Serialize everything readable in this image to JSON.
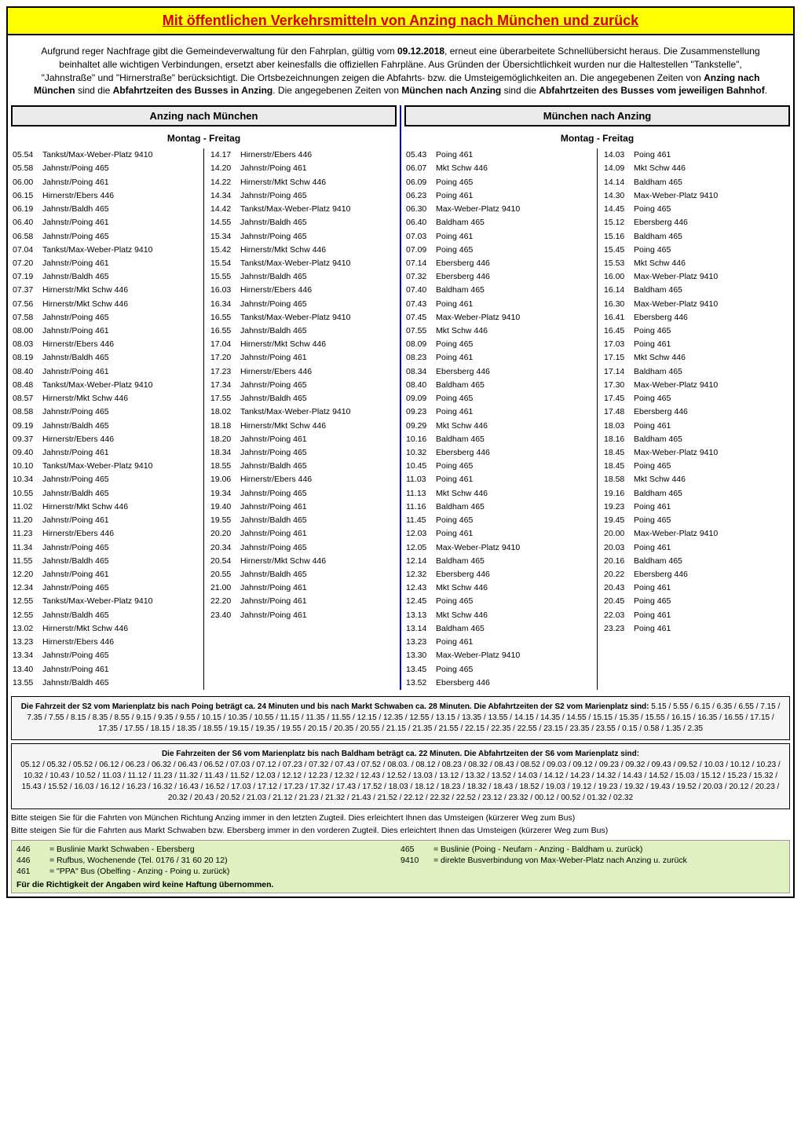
{
  "title": "Mit öffentlichen Verkehrsmitteln von Anzing nach München und zurück",
  "intro": {
    "p1a": "Aufgrund reger Nachfrage gibt die Gemeindeverwaltung für den Fahrplan, gültig vom ",
    "date": "09.12.2018",
    "p1b": ", erneut eine überarbeitete Schnellübersicht heraus. Die Zusammenstellung beinhaltet alle wichtigen Verbindungen, ersetzt aber keinesfalls die offiziellen Fahrpläne. Aus Gründen der Übersichtlichkeit wurden nur die Haltestellen \"Tankstelle\", \"Jahnstraße\"  und \"Hirnerstraße\" berücksichtigt. Die Ortsbezeichnungen zeigen die Abfahrts- bzw. die Umsteigemöglichkeiten an. Die angegebenen Zeiten von ",
    "b1": "Anzing nach München",
    "p1c": " sind die ",
    "b2": "Abfahrtzeiten des Busses in Anzing",
    "p1d": ". Die angegebenen Zeiten von ",
    "b3": "München nach Anzing",
    "p1e": " sind die ",
    "b4": "Abfahrtzeiten des Busses vom jeweiligen Bahnhof",
    "p1f": "."
  },
  "left": {
    "header": "Anzing nach München",
    "day": "Montag - Freitag",
    "col1": [
      [
        "05.54",
        "Tankst/Max-Weber-Platz 9410"
      ],
      [
        "05.58",
        "Jahnstr/Poing 465"
      ],
      [
        "06.00",
        "Jahnstr/Poing 461"
      ],
      [
        "06.15",
        "Hirnerstr/Ebers 446"
      ],
      [
        "06.19",
        "Jahnstr/Baldh 465"
      ],
      [
        "06.40",
        "Jahnstr/Poing 461"
      ],
      [
        "06.58",
        "Jahnstr/Poing 465"
      ],
      [
        "07.04",
        "Tankst/Max-Weber-Platz 9410"
      ],
      [
        "07.20",
        "Jahnstr/Poing 461"
      ],
      [
        "07.19",
        "Jahnstr/Baldh 465"
      ],
      [
        "07.37",
        "Hirnerstr/Mkt Schw 446"
      ],
      [
        "07.56",
        "Hirnerstr/Mkt Schw 446"
      ],
      [
        "07.58",
        "Jahnstr/Poing 465"
      ],
      [
        "08.00",
        "Jahnstr/Poing 461"
      ],
      [
        "08.03",
        "Hirnerstr/Ebers 446"
      ],
      [
        "08.19",
        "Jahnstr/Baldh 465"
      ],
      [
        "08.40",
        "Jahnstr/Poing 461"
      ],
      [
        "08.48",
        "Tankst/Max-Weber-Platz 9410"
      ],
      [
        "08.57",
        "Hirnerstr/Mkt Schw 446"
      ],
      [
        "08.58",
        "Jahnstr/Poing 465"
      ],
      [
        "09.19",
        "Jahnstr/Baldh 465"
      ],
      [
        "09.37",
        "Hirnerstr/Ebers 446"
      ],
      [
        "09.40",
        "Jahnstr/Poing 461"
      ],
      [
        "10.10",
        "Tankst/Max-Weber-Platz 9410"
      ],
      [
        "10.34",
        "Jahnstr/Poing 465"
      ],
      [
        "10.55",
        "Jahnstr/Baldh 465"
      ],
      [
        "11.02",
        "Hirnerstr/Mkt Schw 446"
      ],
      [
        "11.20",
        "Jahnstr/Poing 461"
      ],
      [
        "11.23",
        "Hirnerstr/Ebers 446"
      ],
      [
        "11.34",
        "Jahnstr/Poing 465"
      ],
      [
        "11.55",
        "Jahnstr/Baldh 465"
      ],
      [
        "12.20",
        "Jahnstr/Poing 461"
      ],
      [
        "12.34",
        "Jahnstr/Poing 465"
      ],
      [
        "12.55",
        "Tankst/Max-Weber-Platz 9410"
      ],
      [
        "12.55",
        "Jahnstr/Baldh 465"
      ],
      [
        "13.02",
        "Hirnerstr/Mkt Schw 446"
      ],
      [
        "13.23",
        "Hirnerstr/Ebers 446"
      ],
      [
        "13.34",
        "Jahnstr/Poing 465"
      ],
      [
        "13.40",
        "Jahnstr/Poing 461"
      ],
      [
        "13.55",
        "Jahnstr/Baldh 465"
      ]
    ],
    "col2": [
      [
        "14.17",
        "Hirnerstr/Ebers 446"
      ],
      [
        "14.20",
        "Jahnstr/Poing 461"
      ],
      [
        "14.22",
        "Hirnerstr/Mkt Schw 446"
      ],
      [
        "14.34",
        "Jahnstr/Poing 465"
      ],
      [
        "14.42",
        "Tankst/Max-Weber-Platz 9410"
      ],
      [
        "14.55",
        "Jahnstr/Baldh 465"
      ],
      [
        "15.34",
        "Jahnstr/Poing 465"
      ],
      [
        "15.42",
        "Hirnerstr/Mkt Schw 446"
      ],
      [
        "15.54",
        "Tankst/Max-Weber-Platz 9410"
      ],
      [
        "15.55",
        "Jahnstr/Baldh 465"
      ],
      [
        "16.03",
        "Hirnerstr/Ebers 446"
      ],
      [
        "16.34",
        "Jahnstr/Poing 465"
      ],
      [
        "16.55",
        "Tankst/Max-Weber-Platz 9410"
      ],
      [
        "16.55",
        "Jahnstr/Baldh 465"
      ],
      [
        "17.04",
        "Hirnerstr/Mkt Schw 446"
      ],
      [
        "17.20",
        "Jahnstr/Poing 461"
      ],
      [
        "17.23",
        "Hirnerstr/Ebers 446"
      ],
      [
        "17.34",
        "Jahnstr/Poing 465"
      ],
      [
        "17.55",
        "Jahnstr/Baldh 465"
      ],
      [
        "18.02",
        "Tankst/Max-Weber-Platz 9410"
      ],
      [
        "18.18",
        "Hirnerstr/Mkt Schw 446"
      ],
      [
        "18.20",
        "Jahnstr/Poing 461"
      ],
      [
        "18.34",
        "Jahnstr/Poing 465"
      ],
      [
        "18.55",
        "Jahnstr/Baldh 465"
      ],
      [
        "19.06",
        "Hirnerstr/Ebers 446"
      ],
      [
        "19.34",
        "Jahnstr/Poing 465"
      ],
      [
        "19.40",
        "Jahnstr/Poing 461"
      ],
      [
        "19.55",
        "Jahnstr/Baldh 465"
      ],
      [
        "20.20",
        "Jahnstr/Poing 461"
      ],
      [
        "20.34",
        "Jahnstr/Poing 465"
      ],
      [
        "20.54",
        "Hirnerstr/Mkt Schw 446"
      ],
      [
        "20.55",
        "Jahnstr/Baldh 465"
      ],
      [
        "21.00",
        "Jahnstr/Poing 461"
      ],
      [
        "22.20",
        "Jahnstr/Poing 461"
      ],
      [
        "23.40",
        "Jahnstr/Poing 461"
      ]
    ]
  },
  "right": {
    "header": "München nach Anzing",
    "day": "Montag - Freitag",
    "col1": [
      [
        "05.43",
        "Poing 461"
      ],
      [
        "06.07",
        "Mkt Schw 446"
      ],
      [
        "06.09",
        "Poing 465"
      ],
      [
        "06.23",
        "Poing 461"
      ],
      [
        "06.30",
        "Max-Weber-Platz 9410"
      ],
      [
        "06.40",
        "Baldham 465"
      ],
      [
        "07.03",
        "Poing 461"
      ],
      [
        "07.09",
        "Poing 465"
      ],
      [
        "07.14",
        "Ebersberg 446"
      ],
      [
        "07.32",
        "Ebersberg 446"
      ],
      [
        "07.40",
        "Baldham 465"
      ],
      [
        "07.43",
        "Poing 461"
      ],
      [
        "07.45",
        "Max-Weber-Platz 9410"
      ],
      [
        "07.55",
        "Mkt Schw 446"
      ],
      [
        "08.09",
        "Poing 465"
      ],
      [
        "08.23",
        "Poing 461"
      ],
      [
        "08.34",
        "Ebersberg 446"
      ],
      [
        "08.40",
        "Baldham 465"
      ],
      [
        "09.09",
        "Poing 465"
      ],
      [
        "09.23",
        "Poing 461"
      ],
      [
        "09.29",
        "Mkt Schw 446"
      ],
      [
        "10.16",
        "Baldham 465"
      ],
      [
        "10.32",
        "Ebersberg 446"
      ],
      [
        "10.45",
        "Poing 465"
      ],
      [
        "11.03",
        "Poing 461"
      ],
      [
        "11.13",
        "Mkt Schw 446"
      ],
      [
        "11.16",
        "Baldham 465"
      ],
      [
        "11.45",
        "Poing 465"
      ],
      [
        "12.03",
        "Poing 461"
      ],
      [
        "12.05",
        "Max-Weber-Platz 9410"
      ],
      [
        "12.14",
        "Baldham 465"
      ],
      [
        "12.32",
        "Ebersberg 446"
      ],
      [
        "12.43",
        "Mkt Schw 446"
      ],
      [
        "12.45",
        "Poing 465"
      ],
      [
        "13.13",
        "Mkt Schw 446"
      ],
      [
        "13.14",
        "Baldham 465"
      ],
      [
        "13.23",
        "Poing 461"
      ],
      [
        "13.30",
        "Max-Weber-Platz 9410"
      ],
      [
        "13.45",
        "Poing 465"
      ],
      [
        "13.52",
        "Ebersberg 446"
      ]
    ],
    "col2": [
      [
        "14.03",
        "Poing 461"
      ],
      [
        "14.09",
        "Mkt Schw 446"
      ],
      [
        "14.14",
        "Baldham 465"
      ],
      [
        "14.30",
        "Max-Weber-Platz 9410"
      ],
      [
        "14.45",
        "Poing 465"
      ],
      [
        "15.12",
        "Ebersberg 446"
      ],
      [
        "15.16",
        "Baldham 465"
      ],
      [
        "15.45",
        "Poing 465"
      ],
      [
        "15.53",
        "Mkt Schw 446"
      ],
      [
        "16.00",
        "Max-Weber-Platz 9410"
      ],
      [
        "16.14",
        "Baldham 465"
      ],
      [
        "16.30",
        "Max-Weber-Platz 9410"
      ],
      [
        "16.41",
        "Ebersberg 446"
      ],
      [
        "16.45",
        "Poing 465"
      ],
      [
        "17.03",
        "Poing 461"
      ],
      [
        "17.15",
        "Mkt Schw 446"
      ],
      [
        "17.14",
        "Baldham 465"
      ],
      [
        "17.30",
        "Max-Weber-Platz 9410"
      ],
      [
        "17.45",
        "Poing 465"
      ],
      [
        "17.48",
        "Ebersberg 446"
      ],
      [
        "18.03",
        "Poing 461"
      ],
      [
        "18.16",
        "Baldham 465"
      ],
      [
        "18.45",
        "Max-Weber-Platz 9410"
      ],
      [
        "18.45",
        "Poing 465"
      ],
      [
        "18.58",
        "Mkt Schw 446"
      ],
      [
        "19.16",
        "Baldham 465"
      ],
      [
        "19.23",
        "Poing 461"
      ],
      [
        "19.45",
        "Poing 465"
      ],
      [
        "20.00",
        "Max-Weber-Platz 9410"
      ],
      [
        "20.03",
        "Poing 461"
      ],
      [
        "20.16",
        "Baldham 465"
      ],
      [
        "20.22",
        "Ebersberg 446"
      ],
      [
        "20.43",
        "Poing 461"
      ],
      [
        "20.45",
        "Poing 465"
      ],
      [
        "22.03",
        "Poing 461"
      ],
      [
        "23.23",
        "Poing 461"
      ]
    ]
  },
  "s2": {
    "head": "Die Fahrzeit der S2 vom Marienplatz bis nach Poing beträgt ca. 24 Minuten und bis nach Markt Schwaben ca. 28 Minuten. Die Abfahrtzeiten der S2 vom Marienplatz sind:",
    "body": "5.15 / 5.55 / 6.15 / 6.35 / 6.55 / 7.15 / 7.35 / 7.55 / 8.15 / 8.35 / 8.55 / 9.15 / 9.35 / 9.55 / 10.15 / 10.35 / 10.55 / 11.15 / 11.35 / 11.55 / 12.15 / 12.35 / 12.55 / 13.15 / 13.35 / 13.55 / 14.15 / 14.35 / 14.55 / 15.15 / 15.35 / 15.55 / 16.15 / 16.35 / 16.55 / 17.15 / 17.35 / 17.55 / 18.15 / 18.35 / 18.55 / 19.15 / 19.35 / 19.55 / 20.15 / 20.35 / 20.55 / 21.15 / 21.35 / 21.55 / 22.15 / 22.35 / 22.55 / 23.15 / 23.35 / 23.55 / 0.15 / 0.58 / 1.35 / 2.35"
  },
  "s6": {
    "head": "Die Fahrzeiten der S6 vom Marienplatz bis nach Baldham beträgt ca. 22 Minuten. Die Abfahrtzeiten der S6 vom Marienplatz sind:",
    "body": "05.12 / 05.32 / 05.52 / 06.12 / 06.23 / 06.32 / 06.43 / 06.52 / 07.03 / 07.12 / 07.23 / 07.32 / 07.43 / 07.52 / 08.03. / 08.12 / 08.23 / 08.32 / 08.43 / 08.52 / 09.03 / 09.12 / 09.23 / 09.32 / 09.43 / 09.52 / 10.03 / 10.12 / 10.23 / 10.32 / 10.43 / 10.52 / 11.03 / 11.12 / 11.23 / 11.32 / 11.43 / 11.52 / 12.03 / 12.12 / 12.23 / 12.32 / 12.43 / 12.52 / 13.03 / 13.12 / 13.32 / 13.52 / 14.03 / 14.12 / 14.23 / 14.32 / 14.43 / 14.52 / 15.03 / 15.12 / 15.23 / 15.32 / 15.43 / 15.52 / 16.03 / 16.12 / 16.23 / 16.32 / 16.43 / 16.52 / 17.03 / 17.12 / 17.23 / 17.32 / 17.43 / 17.52 / 18.03 / 18.12 / 18.23 / 18.32 / 18.43 / 18.52 / 19.03 / 19.12 / 19.23 / 19.32 / 19.43 / 19.52 / 20.03 / 20.12 / 20.23 / 20.32 / 20.43 / 20.52 / 21.03 / 21.12 / 21.23 / 21.32 / 21.43 / 21.52 / 22.12 / 22.32 / 22.52 / 23.12 / 23.32 / 00.12 / 00.52 / 01.32 / 02.32"
  },
  "hints": {
    "h1": "Bitte steigen Sie für die Fahrten von München Richtung Anzing immer in den letzten Zugteil. Dies erleichtert Ihnen das Umsteigen (kürzerer Weg zum Bus)",
    "h2": "Bitte steigen Sie für die Fahrten aus Markt Schwaben bzw. Ebersberg immer in den vorderen Zugteil. Dies erleichtert Ihnen das Umsteigen (kürzerer Weg zum Bus)"
  },
  "legend": {
    "items": [
      [
        "446",
        "= Buslinie Markt Schwaben - Ebersberg"
      ],
      [
        "465",
        "= Buslinie (Poing - Neufarn - Anzing - Baldham u. zurück)"
      ],
      [
        "446",
        "= Rufbus, Wochenende (Tel. 0176 / 31 60 20 12)"
      ],
      [
        "9410",
        "= direkte Busverbindung von Max-Weber-Platz nach Anzing u. zurück"
      ],
      [
        "461",
        "= \"PPA\" Bus (Obelfing - Anzing - Poing u. zurück)"
      ]
    ],
    "disclaimer": "Für die Richtigkeit der Angaben wird keine Haftung übernommen."
  }
}
